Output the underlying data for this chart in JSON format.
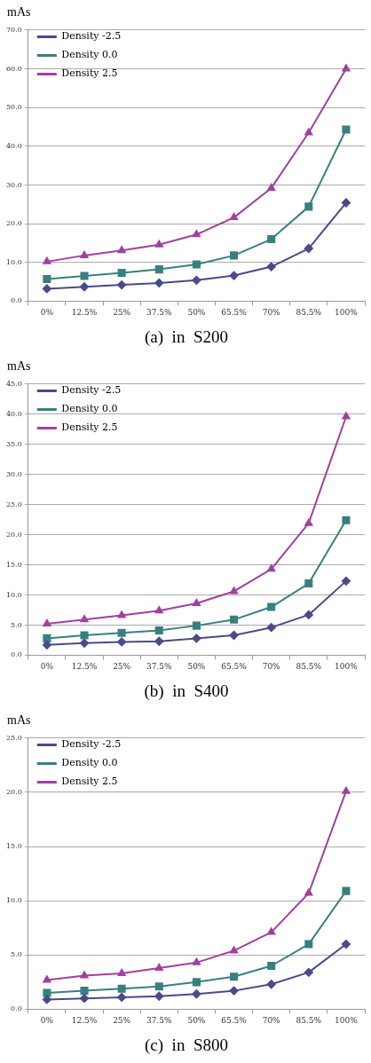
{
  "chart_data": [
    {
      "type": "line",
      "title": "(a)  in  S200",
      "ylabel": "mAs",
      "categories": [
        "0%",
        "12.5%",
        "25%",
        "37.5%",
        "50%",
        "65.5%",
        "70%",
        "85.5%",
        "100%"
      ],
      "series": [
        {
          "name": "Density -2.5",
          "color": "#4b4a8a",
          "marker": "diamond",
          "values": [
            3.2,
            3.7,
            4.2,
            4.7,
            5.4,
            6.6,
            8.9,
            13.6,
            25.4
          ]
        },
        {
          "name": "Density 0.0",
          "color": "#3a7f7f",
          "marker": "square",
          "values": [
            5.7,
            6.5,
            7.3,
            8.2,
            9.5,
            11.8,
            16.0,
            24.4,
            44.3
          ]
        },
        {
          "name": "Density 2.5",
          "color": "#a040a0",
          "marker": "triangle",
          "values": [
            10.2,
            11.8,
            13.1,
            14.6,
            17.2,
            21.6,
            29.2,
            43.5,
            60.0
          ]
        }
      ],
      "ylim": [
        0,
        70
      ],
      "yticks": [
        {
          "value": 0,
          "label": "0.0"
        },
        {
          "value": 10,
          "label": "10.0"
        },
        {
          "value": 20,
          "label": "20.0"
        },
        {
          "value": 30,
          "label": "30.0"
        },
        {
          "value": 40,
          "label": "40.0"
        },
        {
          "value": 50,
          "label": "50.0"
        },
        {
          "value": 60,
          "label": "60.0"
        },
        {
          "value": 70,
          "label": "70.0"
        }
      ],
      "grid": "y",
      "legend": "top left",
      "line_style": "solid"
    },
    {
      "type": "line",
      "title": "(b)  in  S400",
      "ylabel": "mAs",
      "categories": [
        "0%",
        "12.5%",
        "25%",
        "37.5%",
        "50%",
        "65.5%",
        "70%",
        "85.5%",
        "100%"
      ],
      "series": [
        {
          "name": "Density -2.5",
          "color": "#4b4a8a",
          "marker": "diamond",
          "values": [
            1.7,
            2.0,
            2.2,
            2.3,
            2.8,
            3.3,
            4.6,
            6.7,
            12.3
          ]
        },
        {
          "name": "Density 0.0",
          "color": "#3a7f7f",
          "marker": "square",
          "values": [
            2.8,
            3.3,
            3.7,
            4.1,
            4.9,
            5.9,
            8.0,
            11.9,
            22.4
          ]
        },
        {
          "name": "Density 2.5",
          "color": "#a040a0",
          "marker": "triangle",
          "values": [
            5.2,
            5.9,
            6.6,
            7.4,
            8.6,
            10.6,
            14.3,
            21.9,
            39.6
          ]
        }
      ],
      "ylim": [
        0,
        45
      ],
      "yticks": [
        {
          "value": 0,
          "label": "0.0"
        },
        {
          "value": 5,
          "label": "5.0"
        },
        {
          "value": 10,
          "label": "10.0"
        },
        {
          "value": 15,
          "label": "15.0"
        },
        {
          "value": 20,
          "label": "20.0"
        },
        {
          "value": 25,
          "label": "25.0"
        },
        {
          "value": 30,
          "label": "30.0"
        },
        {
          "value": 35,
          "label": "35.0"
        },
        {
          "value": 40,
          "label": "40.0"
        },
        {
          "value": 45,
          "label": "45.0"
        }
      ],
      "grid": "y",
      "legend": "top left",
      "line_style": "solid"
    },
    {
      "type": "line",
      "title": "(c)  in  S800",
      "ylabel": "mAs",
      "categories": [
        "0%",
        "12.5%",
        "25%",
        "37.5%",
        "50%",
        "65.5%",
        "70%",
        "85.5%",
        "100%"
      ],
      "series": [
        {
          "name": "Density -2.5",
          "color": "#4b4a8a",
          "marker": "diamond",
          "values": [
            0.9,
            1.0,
            1.1,
            1.2,
            1.4,
            1.7,
            2.3,
            3.4,
            6.0
          ]
        },
        {
          "name": "Density 0.0",
          "color": "#3a7f7f",
          "marker": "square",
          "values": [
            1.5,
            1.7,
            1.9,
            2.1,
            2.5,
            3.0,
            4.0,
            6.0,
            10.9
          ]
        },
        {
          "name": "Density 2.5",
          "color": "#a040a0",
          "marker": "triangle",
          "values": [
            2.7,
            3.1,
            3.3,
            3.8,
            4.3,
            5.4,
            7.1,
            10.7,
            20.1
          ]
        }
      ],
      "ylim": [
        0,
        25
      ],
      "yticks": [
        {
          "value": 0,
          "label": "0.0"
        },
        {
          "value": 5,
          "label": "5.0"
        },
        {
          "value": 10,
          "label": "10.0"
        },
        {
          "value": 15,
          "label": "15.0"
        },
        {
          "value": 20,
          "label": "20.0"
        },
        {
          "value": 25,
          "label": "25.0"
        }
      ],
      "grid": "y",
      "legend": "top left",
      "line_style": "solid"
    }
  ]
}
